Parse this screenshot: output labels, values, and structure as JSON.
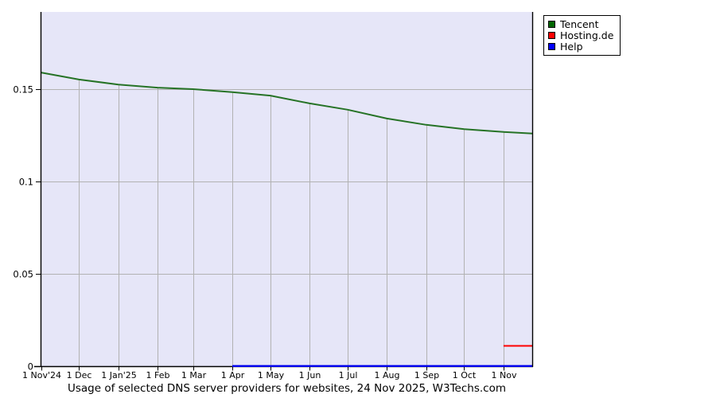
{
  "chart_data": {
    "type": "line",
    "title": "Usage of selected DNS server providers for websites, 24 Nov 2025, W3Techs.com",
    "xlabel": "",
    "ylabel": "",
    "ylim": [
      0,
      0.1918
    ],
    "x_total_days": 388,
    "grid": true,
    "legend_position": "top-right-outside",
    "y_ticks": [
      {
        "value": 0,
        "label": "0"
      },
      {
        "value": 0.05,
        "label": "0.05"
      },
      {
        "value": 0.1,
        "label": "0.1"
      },
      {
        "value": 0.15,
        "label": "0.15"
      }
    ],
    "x_ticks": [
      {
        "day": 0,
        "label": "1 Nov'24"
      },
      {
        "day": 30,
        "label": "1 Dec"
      },
      {
        "day": 61,
        "label": "1 Jan'25"
      },
      {
        "day": 92,
        "label": "1 Feb"
      },
      {
        "day": 120,
        "label": "1 Mar"
      },
      {
        "day": 151,
        "label": "1 Apr"
      },
      {
        "day": 181,
        "label": "1 May"
      },
      {
        "day": 212,
        "label": "1 Jun"
      },
      {
        "day": 242,
        "label": "1 Jul"
      },
      {
        "day": 273,
        "label": "1 Aug"
      },
      {
        "day": 304,
        "label": "1 Sep"
      },
      {
        "day": 334,
        "label": "1 Oct"
      },
      {
        "day": 365,
        "label": "1 Nov"
      }
    ],
    "series": [
      {
        "name": "Tencent",
        "color": "#267326",
        "width": 2,
        "x_days": [
          0,
          30,
          61,
          92,
          120,
          151,
          181,
          212,
          242,
          273,
          304,
          334,
          365,
          388
        ],
        "values": [
          0.159,
          0.1552,
          0.1525,
          0.1508,
          0.15,
          0.1484,
          0.1465,
          0.1423,
          0.1389,
          0.1341,
          0.1307,
          0.1283,
          0.1268,
          0.126
        ]
      },
      {
        "name": "Hosting.de",
        "color": "#ff0000",
        "width": 2,
        "x_days": [
          365,
          388
        ],
        "values": [
          0.011,
          0.011
        ]
      },
      {
        "name": "Help",
        "color": "#0000ee",
        "width": 2.4,
        "x_days": [
          151,
          388
        ],
        "values": [
          0.0001,
          0.0001
        ]
      }
    ]
  },
  "legend": {
    "items": [
      {
        "label": "Tencent",
        "color": "#006600"
      },
      {
        "label": "Hosting.de",
        "color": "#ff0000"
      },
      {
        "label": "Help",
        "color": "#0000ff"
      }
    ]
  },
  "colors": {
    "plot_bg": "#e6e6f8",
    "grid": "#b2b2b2",
    "axis": "#000000",
    "page_bg": "#ffffff",
    "legend_bg": "#ffffff"
  }
}
